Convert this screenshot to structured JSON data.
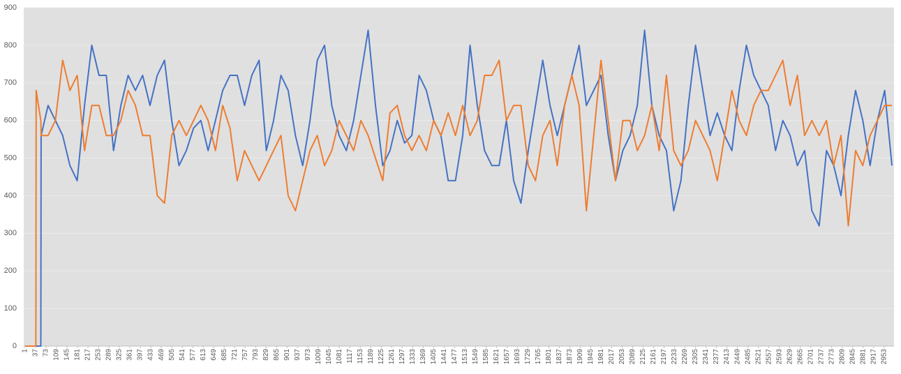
{
  "chart_data": {
    "type": "line",
    "x": [
      1,
      38,
      39,
      55,
      56,
      80,
      105,
      130,
      155,
      180,
      205,
      230,
      255,
      280,
      305,
      330,
      355,
      380,
      405,
      430,
      455,
      480,
      505,
      530,
      555,
      580,
      605,
      630,
      655,
      680,
      705,
      730,
      755,
      780,
      805,
      830,
      855,
      880,
      905,
      930,
      955,
      980,
      1005,
      1030,
      1055,
      1080,
      1105,
      1130,
      1155,
      1180,
      1205,
      1230,
      1255,
      1280,
      1305,
      1330,
      1355,
      1380,
      1405,
      1430,
      1455,
      1480,
      1505,
      1530,
      1555,
      1580,
      1605,
      1630,
      1655,
      1680,
      1705,
      1730,
      1755,
      1780,
      1805,
      1830,
      1855,
      1880,
      1905,
      1930,
      1955,
      1980,
      2005,
      2030,
      2055,
      2080,
      2105,
      2130,
      2155,
      2180,
      2205,
      2230,
      2255,
      2280,
      2305,
      2330,
      2355,
      2380,
      2405,
      2430,
      2455,
      2480,
      2505,
      2530,
      2555,
      2580,
      2605,
      2630,
      2655,
      2680,
      2705,
      2730,
      2755,
      2780,
      2805,
      2830,
      2855,
      2880,
      2905,
      2930,
      2955,
      2980
    ],
    "series": [
      {
        "color": "#4472c4",
        "values": [
          0,
          0,
          0,
          0,
          560,
          640,
          600,
          560,
          480,
          440,
          640,
          800,
          720,
          720,
          520,
          640,
          720,
          680,
          720,
          640,
          720,
          760,
          600,
          480,
          520,
          580,
          600,
          520,
          600,
          680,
          720,
          720,
          640,
          720,
          760,
          520,
          600,
          720,
          680,
          560,
          480,
          600,
          760,
          800,
          640,
          560,
          520,
          600,
          720,
          840,
          640,
          480,
          520,
          600,
          540,
          560,
          720,
          680,
          600,
          560,
          440,
          440,
          560,
          800,
          640,
          520,
          480,
          480,
          600,
          440,
          380,
          520,
          640,
          760,
          640,
          560,
          640,
          720,
          800,
          640,
          680,
          720,
          560,
          440,
          520,
          560,
          640,
          840,
          640,
          560,
          520,
          360,
          440,
          640,
          800,
          680,
          560,
          620,
          560,
          520,
          680,
          800,
          720,
          680,
          640,
          520,
          600,
          560,
          480,
          520,
          360,
          320,
          520,
          480,
          400,
          560,
          680,
          600,
          480,
          600,
          680,
          480
        ]
      },
      {
        "color": "#ed7d31",
        "values": [
          0,
          0,
          680,
          600,
          560,
          560,
          600,
          760,
          680,
          720,
          520,
          640,
          640,
          560,
          560,
          600,
          680,
          640,
          560,
          560,
          400,
          380,
          560,
          600,
          560,
          600,
          640,
          600,
          520,
          640,
          580,
          440,
          520,
          480,
          440,
          480,
          520,
          560,
          400,
          360,
          440,
          520,
          560,
          480,
          520,
          600,
          560,
          520,
          600,
          560,
          500,
          440,
          620,
          640,
          560,
          520,
          560,
          520,
          600,
          560,
          620,
          560,
          640,
          560,
          600,
          720,
          720,
          760,
          600,
          640,
          640,
          480,
          440,
          560,
          600,
          480,
          640,
          720,
          640,
          360,
          560,
          760,
          600,
          440,
          600,
          600,
          520,
          560,
          640,
          520,
          720,
          520,
          480,
          520,
          600,
          560,
          520,
          440,
          560,
          680,
          600,
          560,
          640,
          680,
          680,
          720,
          760,
          640,
          720,
          560,
          600,
          560,
          600,
          480,
          560,
          320,
          520,
          480,
          560,
          600,
          640,
          640
        ]
      }
    ],
    "xlim": [
      1,
      2980
    ],
    "xticks": [
      1,
      37,
      73,
      109,
      145,
      181,
      217,
      253,
      289,
      325,
      361,
      397,
      433,
      469,
      505,
      541,
      577,
      613,
      649,
      685,
      721,
      757,
      793,
      829,
      865,
      901,
      937,
      973,
      1009,
      1045,
      1081,
      1117,
      1153,
      1189,
      1225,
      1261,
      1297,
      1333,
      1369,
      1405,
      1441,
      1477,
      1513,
      1549,
      1585,
      1621,
      1657,
      1693,
      1729,
      1765,
      1801,
      1837,
      1873,
      1909,
      1945,
      1981,
      2017,
      2053,
      2089,
      2125,
      2161,
      2197,
      2233,
      2269,
      2305,
      2341,
      2377,
      2413,
      2449,
      2485,
      2521,
      2557,
      2593,
      2629,
      2665,
      2701,
      2737,
      2773,
      2809,
      2845,
      2881,
      2917,
      2953
    ],
    "ylim": [
      0,
      900
    ],
    "yticks": [
      0,
      100,
      200,
      300,
      400,
      500,
      600,
      700,
      800,
      900
    ],
    "grid": true
  }
}
